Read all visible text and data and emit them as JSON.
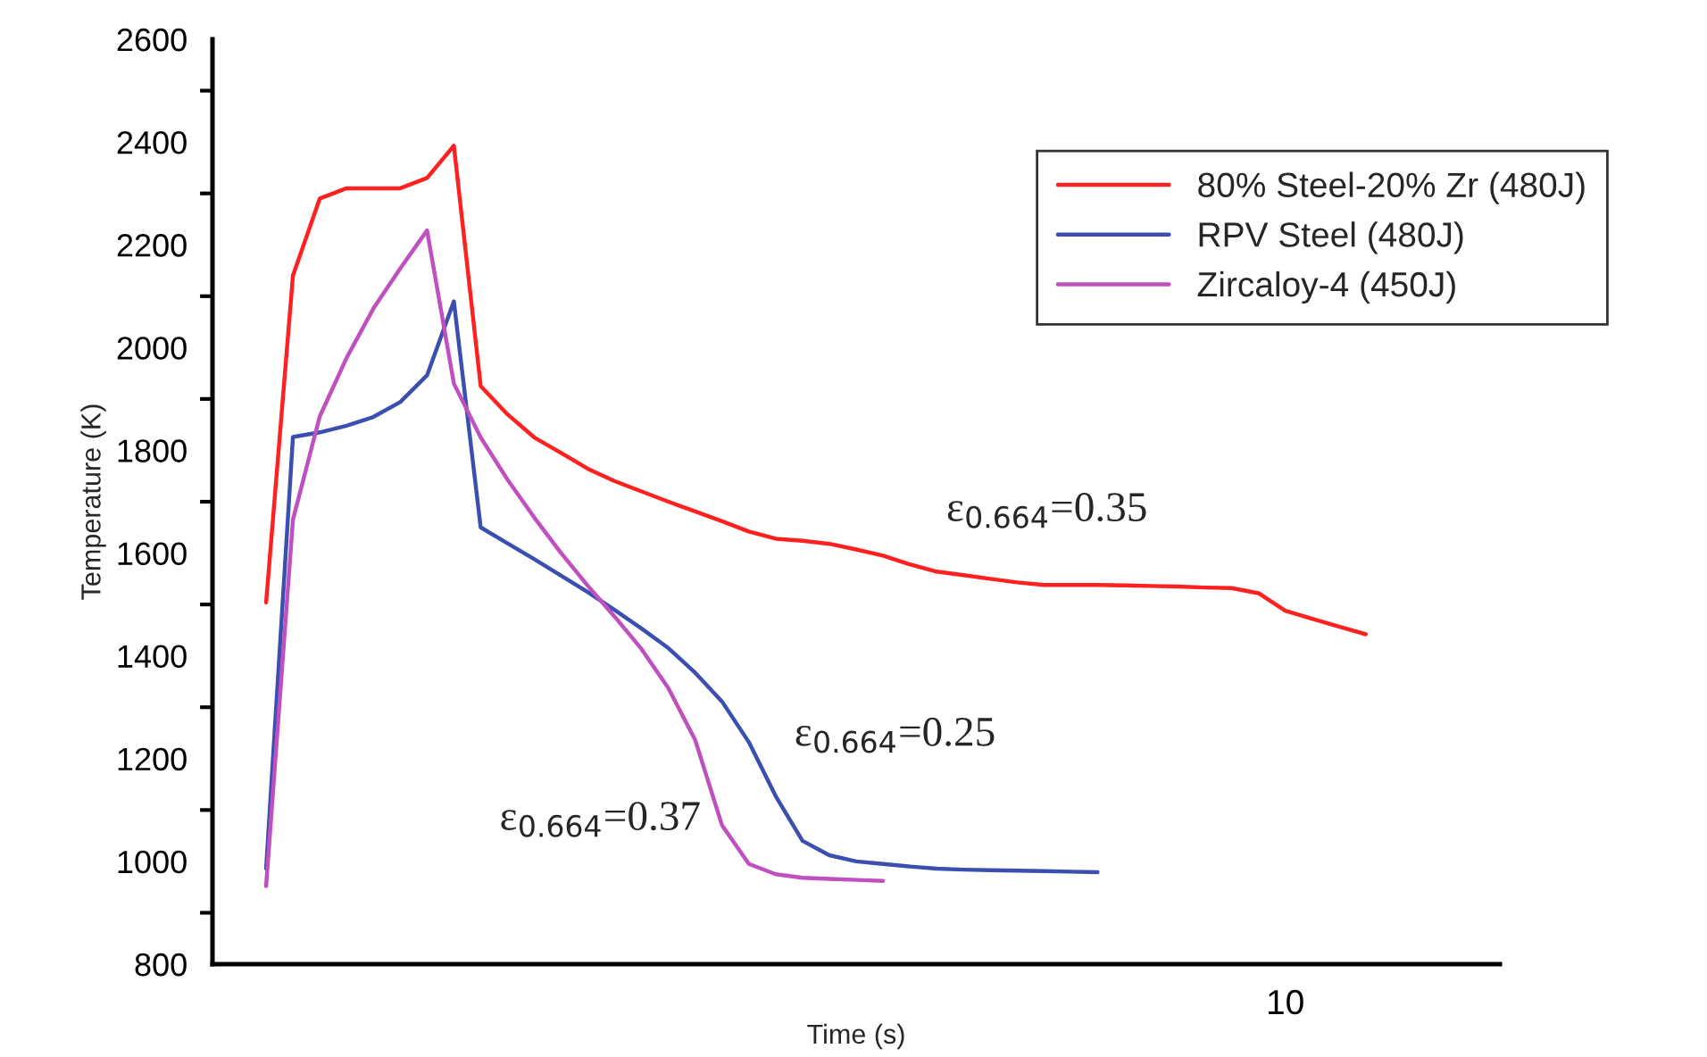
{
  "chart_data": {
    "type": "line",
    "xlabel": "Time (s)",
    "ylabel": "Temperature (K)",
    "categories": [
      null,
      null,
      null,
      null,
      null,
      null,
      null,
      null,
      null,
      null,
      null,
      null,
      null,
      null,
      null,
      null,
      null,
      null,
      null,
      null,
      null,
      null,
      null,
      null,
      null,
      null,
      null,
      null,
      null,
      null,
      null,
      null,
      null,
      null,
      null,
      null,
      null,
      null,
      null,
      null,
      "10",
      null,
      null,
      null,
      null,
      null,
      null,
      null,
      null
    ],
    "ylim": [
      800,
      2600
    ],
    "yticks": [
      800,
      {
        "value": 900,
        "label": null
      },
      1000,
      {
        "value": 1100,
        "label": null
      },
      1200,
      {
        "value": 1300,
        "label": null
      },
      1400,
      {
        "value": 1500,
        "label": null
      },
      1600,
      {
        "value": 1700,
        "label": null
      },
      1800,
      {
        "value": 1900,
        "label": null
      },
      2000,
      {
        "value": 2100,
        "label": null
      },
      2200,
      {
        "value": 2300,
        "label": null
      },
      2400,
      {
        "value": 2500,
        "label": null
      },
      2600
    ],
    "grid": false,
    "legend": "top right",
    "line_style": "solid",
    "marker": "none",
    "series": [
      {
        "name": "80% Steel-20% Zr (480J)",
        "color": "#ff2020",
        "values": [
          null,
          null,
          1504,
          2140,
          2290,
          2310,
          2310,
          2310,
          2330,
          2393,
          1925,
          1870,
          1825,
          1795,
          1764,
          1740,
          1720,
          1700,
          1681,
          1662,
          1642,
          1628,
          1624,
          1618,
          1607,
          1595,
          1578,
          1564,
          1557,
          1550,
          1543,
          1538,
          1538,
          1538,
          1537,
          1536,
          1535,
          1533,
          1532,
          1522,
          1488,
          1472,
          1457,
          1442,
          null,
          null,
          null,
          null,
          null
        ]
      },
      {
        "name": "RPV Steel (480J)",
        "color": "#3a4fb0",
        "values": [
          null,
          null,
          986,
          1826,
          1835,
          1848,
          1865,
          1894,
          1946,
          2090,
          1650,
          1619,
          1588,
          1556,
          1524,
          1489,
          1453,
          1415,
          1367,
          1311,
          1232,
          1127,
          1040,
          1012,
          1000,
          995,
          990,
          986,
          984,
          983,
          982,
          981,
          980,
          979,
          null,
          null,
          null,
          null,
          null,
          null,
          null,
          null,
          null,
          null,
          null,
          null,
          null,
          null,
          null
        ]
      },
      {
        "name": "Zircaloy-4 (450J)",
        "color": "#c04fc0",
        "values": [
          null,
          null,
          952,
          1665,
          1866,
          1980,
          2076,
          2154,
          2228,
          1930,
          1825,
          1743,
          1669,
          1600,
          1536,
          1476,
          1413,
          1337,
          1236,
          1070,
          995,
          975,
          968,
          966,
          964,
          962,
          null,
          null,
          null,
          null,
          null,
          null,
          null,
          null,
          null,
          null,
          null,
          null,
          null,
          null,
          null,
          null,
          null,
          null,
          null,
          null,
          null,
          null,
          null
        ]
      }
    ],
    "annotations": [
      "ε$_{0.664}$=0.35",
      "ε$_{0.664}$=0.25",
      "ε$_{0.664}$=0.37"
    ]
  }
}
